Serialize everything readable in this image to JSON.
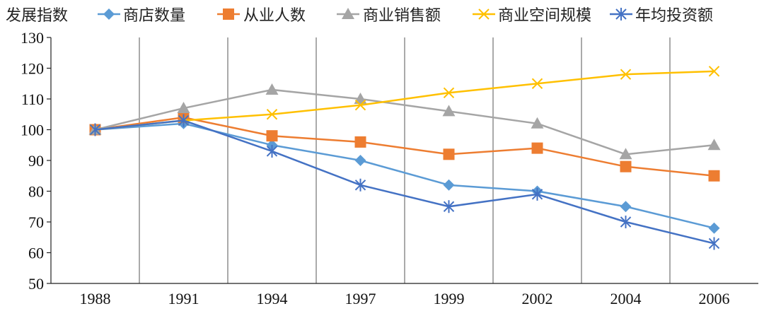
{
  "chart_data": {
    "type": "line",
    "legend_title": "发展指数",
    "categories": [
      "1988",
      "1991",
      "1994",
      "1997",
      "1999",
      "2002",
      "2004",
      "2006"
    ],
    "ylim": [
      50,
      130
    ],
    "yticks": [
      50,
      60,
      70,
      80,
      90,
      100,
      110,
      120,
      130
    ],
    "grid": "vertical lines between categories",
    "legend_position": "top",
    "series": [
      {
        "name": "商店数量",
        "marker": "diamond",
        "color": "#5B9BD5",
        "values": [
          100,
          102,
          95,
          90,
          82,
          80,
          75,
          68
        ]
      },
      {
        "name": "从业人数",
        "marker": "square",
        "color": "#ED7D31",
        "values": [
          100,
          104,
          98,
          96,
          92,
          94,
          88,
          85
        ]
      },
      {
        "name": "商业销售额",
        "marker": "triangle",
        "color": "#A5A5A5",
        "values": [
          100,
          107,
          113,
          110,
          106,
          102,
          92,
          95
        ]
      },
      {
        "name": "商业空间规模",
        "marker": "x",
        "color": "#FFC000",
        "values": [
          100,
          103,
          105,
          108,
          112,
          115,
          118,
          119
        ]
      },
      {
        "name": "年均投资额",
        "marker": "asterisk",
        "color": "#4472C4",
        "values": [
          100,
          103,
          93,
          82,
          75,
          79,
          70,
          63
        ]
      }
    ]
  }
}
